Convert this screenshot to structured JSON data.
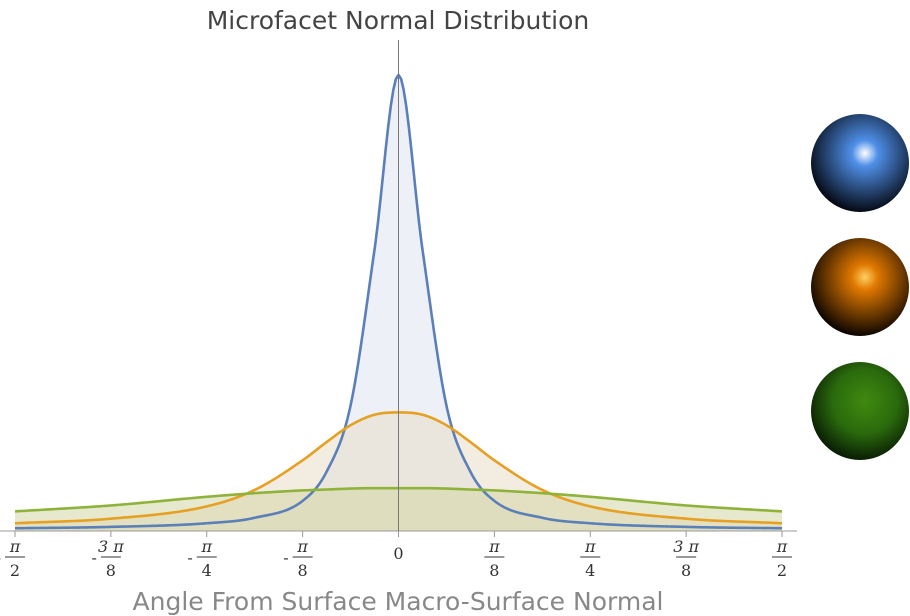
{
  "chart_data": {
    "type": "area",
    "title": "Microfacet Normal Distribution",
    "xlabel": "Angle From Surface Macro-Surface Normal",
    "ylabel": "",
    "xlim": [
      -1.5708,
      1.5708
    ],
    "ylim": [
      0,
      1.0
    ],
    "grid": false,
    "legend": "right (sphere swatches)",
    "x_ticks": [
      {
        "value": -1.5708,
        "sign": "-",
        "num": "π",
        "den": "2"
      },
      {
        "value": -1.1781,
        "sign": "-",
        "num": "3 π",
        "den": "8"
      },
      {
        "value": -0.7854,
        "sign": "-",
        "num": "π",
        "den": "4"
      },
      {
        "value": -0.3927,
        "sign": "-",
        "num": "π",
        "den": "8"
      },
      {
        "value": 0,
        "sign": "",
        "num": "0",
        "den": ""
      },
      {
        "value": 0.3927,
        "sign": "",
        "num": "π",
        "den": "8"
      },
      {
        "value": 0.7854,
        "sign": "",
        "num": "π",
        "den": "4"
      },
      {
        "value": 1.1781,
        "sign": "",
        "num": "3 π",
        "den": "8"
      },
      {
        "value": 1.5708,
        "sign": "",
        "num": "π",
        "den": "2"
      }
    ],
    "x": [
      -1.5708,
      -1.1781,
      -0.7854,
      -0.5891,
      -0.3927,
      -0.2945,
      -0.1963,
      -0.0982,
      0,
      0.0982,
      0.1963,
      0.2945,
      0.3927,
      0.5891,
      0.7854,
      1.1781,
      1.5708
    ],
    "series": [
      {
        "color": "#5b7fb8",
        "fill": "#dfe5f1",
        "values": [
          0.006,
          0.009,
          0.017,
          0.029,
          0.066,
          0.13,
          0.275,
          0.617,
          1.0,
          0.617,
          0.275,
          0.13,
          0.066,
          0.029,
          0.017,
          0.009,
          0.006
        ]
      },
      {
        "color": "#e6a023",
        "fill": "#e9dcc8",
        "values": [
          0.017,
          0.027,
          0.054,
          0.09,
          0.155,
          0.195,
          0.232,
          0.255,
          0.26,
          0.255,
          0.232,
          0.195,
          0.155,
          0.09,
          0.054,
          0.027,
          0.017
        ]
      },
      {
        "color": "#8fb33a",
        "fill": "#d3d7a6",
        "values": [
          0.043,
          0.056,
          0.075,
          0.083,
          0.089,
          0.091,
          0.093,
          0.094,
          0.094,
          0.094,
          0.093,
          0.091,
          0.089,
          0.083,
          0.075,
          0.056,
          0.043
        ]
      }
    ],
    "legend_swatches": [
      {
        "name": "blue-sphere",
        "core": "#ffffff",
        "mid": "#4f8fe8",
        "edge": "#050a14"
      },
      {
        "name": "orange-sphere",
        "core": "#ffd060",
        "mid": "#e07800",
        "edge": "#0d0600"
      },
      {
        "name": "green-sphere",
        "core": "#3f8a10",
        "mid": "#2a6a0c",
        "edge": "#0a1e04"
      }
    ]
  }
}
